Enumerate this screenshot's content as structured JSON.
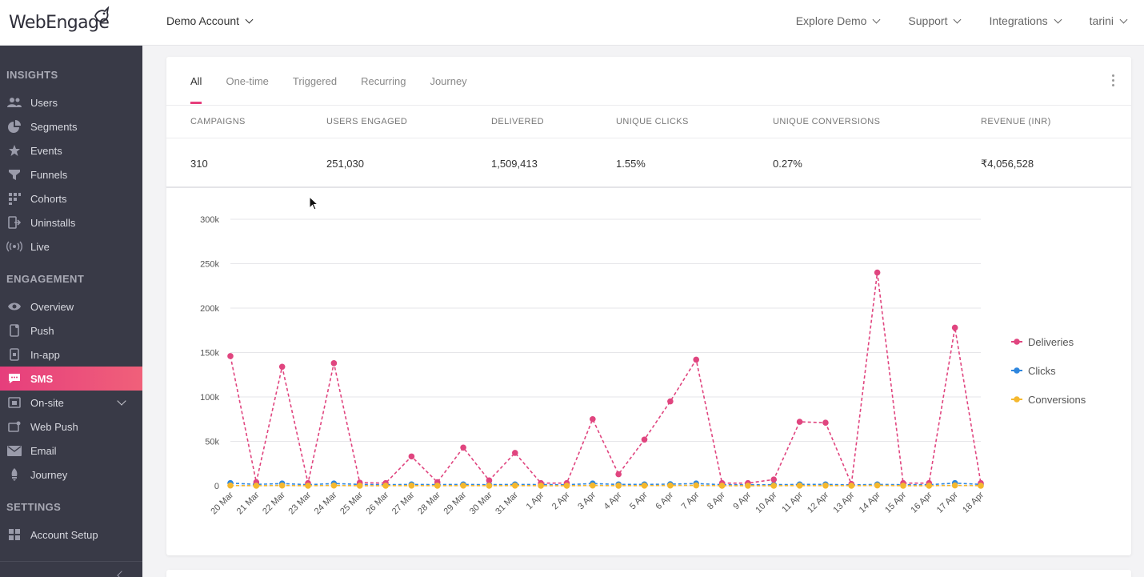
{
  "header": {
    "logo_text": "WebEngage",
    "account": "Demo Account",
    "nav": [
      "Explore Demo",
      "Support",
      "Integrations",
      "tarini"
    ]
  },
  "sidebar": {
    "sections": [
      {
        "title": "INSIGHTS",
        "items": [
          {
            "label": "Users",
            "icon": "users-icon"
          },
          {
            "label": "Segments",
            "icon": "pie-icon"
          },
          {
            "label": "Events",
            "icon": "star-icon"
          },
          {
            "label": "Funnels",
            "icon": "funnel-icon"
          },
          {
            "label": "Cohorts",
            "icon": "grid-icon"
          },
          {
            "label": "Uninstalls",
            "icon": "exit-icon"
          },
          {
            "label": "Live",
            "icon": "broadcast-icon"
          }
        ]
      },
      {
        "title": "ENGAGEMENT",
        "items": [
          {
            "label": "Overview",
            "icon": "eye-icon"
          },
          {
            "label": "Push",
            "icon": "phone-icon"
          },
          {
            "label": "In-app",
            "icon": "inapp-icon"
          },
          {
            "label": "SMS",
            "icon": "sms-icon",
            "active": true
          },
          {
            "label": "On-site",
            "icon": "onsite-icon"
          },
          {
            "label": "Web Push",
            "icon": "webpush-icon"
          },
          {
            "label": "Email",
            "icon": "mail-icon"
          },
          {
            "label": "Journey",
            "icon": "journey-icon"
          }
        ]
      },
      {
        "title": "SETTINGS",
        "items": [
          {
            "label": "Account Setup",
            "icon": "setup-icon"
          }
        ]
      }
    ]
  },
  "tabs": [
    "All",
    "One-time",
    "Triggered",
    "Recurring",
    "Journey"
  ],
  "active_tab": "All",
  "stats": [
    {
      "label": "CAMPAIGNS",
      "value": "310"
    },
    {
      "label": "USERS ENGAGED",
      "value": "251,030"
    },
    {
      "label": "DELIVERED",
      "value": "1,509,413"
    },
    {
      "label": "UNIQUE CLICKS",
      "value": "1.55%"
    },
    {
      "label": "UNIQUE CONVERSIONS",
      "value": "0.27%"
    },
    {
      "label": "REVENUE (INR)",
      "value": "₹4,056,528"
    }
  ],
  "chart_data": {
    "type": "line",
    "title": "",
    "xlabel": "",
    "ylabel": "",
    "ylim": [
      0,
      300000
    ],
    "y_ticks": [
      "0",
      "50k",
      "100k",
      "150k",
      "200k",
      "250k",
      "300k"
    ],
    "grid": true,
    "legend_placement": "right",
    "categories": [
      "20 Mar",
      "21 Mar",
      "22 Mar",
      "23 Mar",
      "24 Mar",
      "25 Mar",
      "26 Mar",
      "27 Mar",
      "28 Mar",
      "29 Mar",
      "30 Mar",
      "31 Mar",
      "1 Apr",
      "2 Apr",
      "3 Apr",
      "4 Apr",
      "5 Apr",
      "6 Apr",
      "7 Apr",
      "8 Apr",
      "9 Apr",
      "10 Apr",
      "11 Apr",
      "12 Apr",
      "13 Apr",
      "14 Apr",
      "15 Apr",
      "16 Apr",
      "17 Apr",
      "18 Apr"
    ],
    "series": [
      {
        "name": "Deliveries",
        "color": "#e0457f",
        "values": [
          146000,
          4000,
          134000,
          3000,
          138000,
          3500,
          3000,
          33000,
          4000,
          43000,
          6000,
          37000,
          3000,
          3000,
          75000,
          13000,
          52000,
          95000,
          142000,
          3000,
          3000,
          7000,
          72000,
          71000,
          2000,
          240000,
          3000,
          3000,
          178000,
          3000
        ]
      },
      {
        "name": "Clicks",
        "color": "#2e86de",
        "values": [
          3000,
          1500,
          2500,
          1200,
          2500,
          1500,
          1200,
          1500,
          1300,
          1500,
          1200,
          1500,
          1300,
          1200,
          2500,
          1500,
          1500,
          1800,
          2500,
          1200,
          1200,
          1200,
          1500,
          1500,
          1000,
          1500,
          1200,
          1200,
          3000,
          1500
        ]
      },
      {
        "name": "Conversions",
        "color": "#f5b82e",
        "values": [
          300,
          100,
          300,
          100,
          300,
          100,
          100,
          200,
          100,
          200,
          100,
          200,
          100,
          100,
          300,
          100,
          200,
          300,
          400,
          100,
          100,
          100,
          200,
          200,
          100,
          400,
          100,
          100,
          400,
          100
        ]
      }
    ]
  }
}
